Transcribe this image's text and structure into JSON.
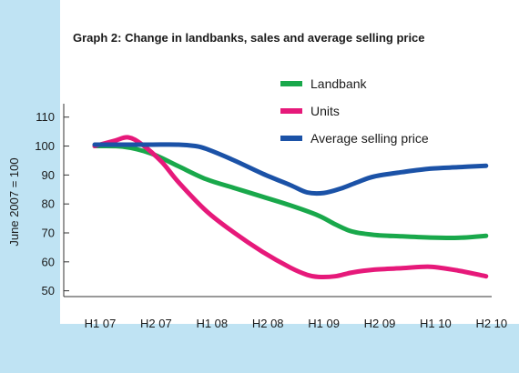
{
  "chart_data": {
    "type": "line",
    "title": "Graph 2: Change in landbanks, sales and average selling price",
    "ylabel": "June 2007 = 100",
    "xlabel": "",
    "categories": [
      "H1 07",
      "H2 07",
      "H1 08",
      "H2 08",
      "H1 09",
      "H2 09",
      "H1 10",
      "H2 10"
    ],
    "yticks": [
      50,
      60,
      70,
      80,
      90,
      100,
      110
    ],
    "ylim": [
      48,
      114
    ],
    "grid": false,
    "legend_position": "top-right",
    "series": [
      {
        "name": "Landbank",
        "color": "#19a84b",
        "points": [
          [
            0,
            100
          ],
          [
            0.5,
            99.8
          ],
          [
            1,
            97.5
          ],
          [
            1.5,
            93
          ],
          [
            2,
            88.5
          ],
          [
            2.5,
            85.5
          ],
          [
            3,
            82.5
          ],
          [
            3.5,
            79.5
          ],
          [
            4,
            76
          ],
          [
            4.3,
            73
          ],
          [
            4.6,
            70.5
          ],
          [
            5,
            69.3
          ],
          [
            5.5,
            68.8
          ],
          [
            6,
            68.4
          ],
          [
            6.5,
            68.3
          ],
          [
            7,
            69
          ]
        ]
      },
      {
        "name": "Units",
        "color": "#e6197a",
        "points": [
          [
            0,
            100
          ],
          [
            0.35,
            101.8
          ],
          [
            0.6,
            103
          ],
          [
            0.85,
            100.5
          ],
          [
            1.2,
            94.5
          ],
          [
            1.5,
            87.5
          ],
          [
            2,
            77.5
          ],
          [
            2.5,
            70
          ],
          [
            3,
            63.5
          ],
          [
            3.5,
            58
          ],
          [
            3.8,
            55.5
          ],
          [
            4,
            54.8
          ],
          [
            4.3,
            55
          ],
          [
            4.6,
            56.3
          ],
          [
            5,
            57.3
          ],
          [
            5.5,
            57.8
          ],
          [
            6,
            58.3
          ],
          [
            6.5,
            57
          ],
          [
            7,
            55
          ]
        ]
      },
      {
        "name": "Average selling price",
        "color": "#1b52a7",
        "points": [
          [
            0,
            100.5
          ],
          [
            0.5,
            100.5
          ],
          [
            1,
            100.5
          ],
          [
            1.5,
            100.5
          ],
          [
            1.8,
            100
          ],
          [
            2,
            99
          ],
          [
            2.5,
            95
          ],
          [
            3,
            90.5
          ],
          [
            3.5,
            86.5
          ],
          [
            3.8,
            84
          ],
          [
            4.1,
            83.8
          ],
          [
            4.4,
            85.3
          ],
          [
            4.7,
            87.5
          ],
          [
            5,
            89.5
          ],
          [
            5.5,
            91
          ],
          [
            6,
            92.2
          ],
          [
            6.5,
            92.7
          ],
          [
            7,
            93.2
          ]
        ]
      }
    ]
  }
}
